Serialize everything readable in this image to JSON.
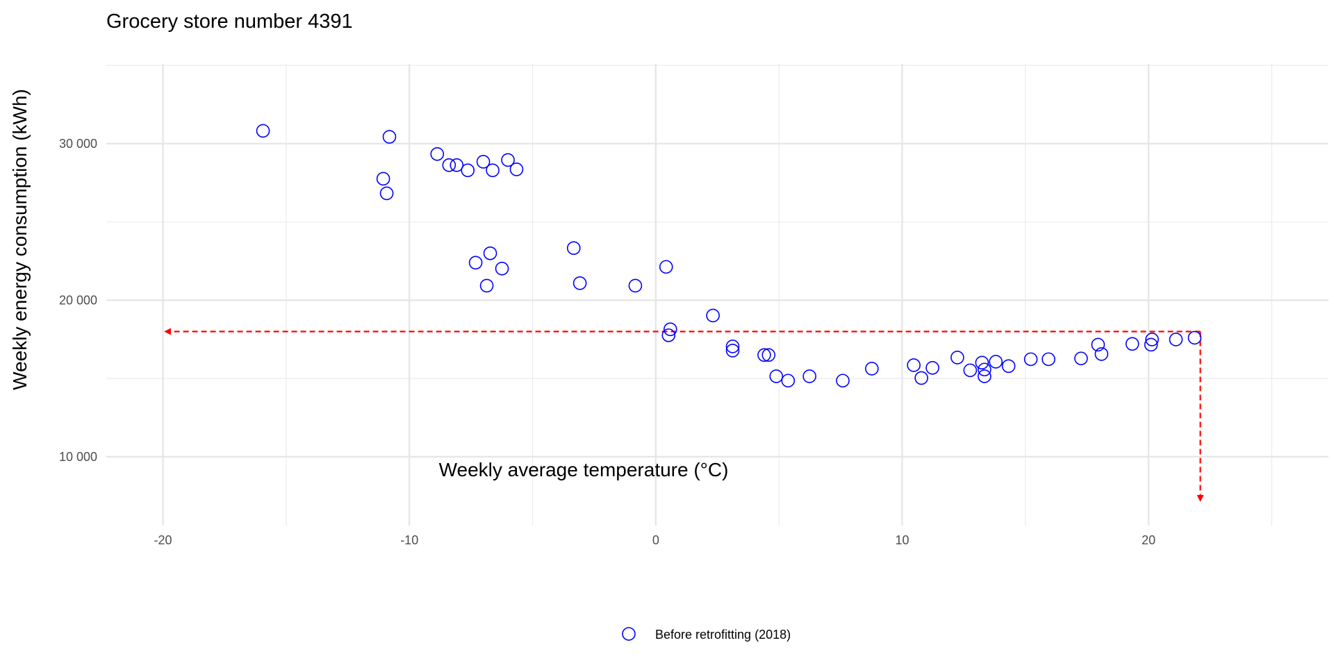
{
  "chart_data": {
    "type": "scatter",
    "title": "Grocery store number 4391",
    "xlabel": "Weekly average temperature (°C)",
    "ylabel": "Weekly energy consumption (kWh)",
    "xlim": [
      -22.3,
      27.3
    ],
    "ylim": [
      5600,
      35100
    ],
    "x_ticks": [
      -20,
      -10,
      0,
      10,
      20
    ],
    "x_tick_labels": [
      "-20",
      "-10",
      "0",
      "10",
      "20"
    ],
    "x_minor_ticks": [
      -15,
      -5,
      5,
      15,
      25
    ],
    "y_ticks": [
      10000,
      20000,
      30000
    ],
    "y_tick_labels": [
      "10 000",
      "20 000",
      "30 000"
    ],
    "y_minor_ticks": [
      15000,
      25000,
      35000
    ],
    "grid": true,
    "legend_position": "bottom",
    "series": [
      {
        "name": "Before retrofitting (2018)",
        "color": "#0000ff",
        "marker": "open-circle",
        "points": [
          [
            -15.94,
            30820
          ],
          [
            -10.81,
            30440
          ],
          [
            -11.06,
            27760
          ],
          [
            -10.92,
            26830
          ],
          [
            -8.87,
            29340
          ],
          [
            -8.39,
            28630
          ],
          [
            -8.08,
            28630
          ],
          [
            -7.63,
            28300
          ],
          [
            -7.0,
            28850
          ],
          [
            -6.62,
            28300
          ],
          [
            -6.0,
            28960
          ],
          [
            -5.65,
            28360
          ],
          [
            -7.31,
            22400
          ],
          [
            -6.72,
            23000
          ],
          [
            -6.24,
            22020
          ],
          [
            -6.86,
            20930
          ],
          [
            -3.33,
            23330
          ],
          [
            -3.08,
            21090
          ],
          [
            -0.83,
            20930
          ],
          [
            0.42,
            22130
          ],
          [
            0.59,
            18140
          ],
          [
            0.52,
            17760
          ],
          [
            2.32,
            19020
          ],
          [
            3.12,
            17050
          ],
          [
            3.12,
            16780
          ],
          [
            4.4,
            16500
          ],
          [
            4.58,
            16500
          ],
          [
            4.89,
            15140
          ],
          [
            5.37,
            14860
          ],
          [
            6.24,
            15140
          ],
          [
            7.59,
            14860
          ],
          [
            8.77,
            15630
          ],
          [
            10.47,
            15850
          ],
          [
            10.78,
            15030
          ],
          [
            11.23,
            15680
          ],
          [
            12.24,
            16340
          ],
          [
            12.76,
            15520
          ],
          [
            13.24,
            16010
          ],
          [
            13.34,
            15570
          ],
          [
            13.34,
            15140
          ],
          [
            13.8,
            16070
          ],
          [
            14.32,
            15790
          ],
          [
            15.22,
            16230
          ],
          [
            15.94,
            16230
          ],
          [
            17.26,
            16280
          ],
          [
            17.95,
            17160
          ],
          [
            18.09,
            16560
          ],
          [
            19.34,
            17210
          ],
          [
            20.14,
            17490
          ],
          [
            20.1,
            17160
          ],
          [
            21.11,
            17490
          ],
          [
            21.87,
            17600
          ]
        ]
      }
    ],
    "annotations": [
      {
        "type": "dashed-arrow",
        "color": "#ff0000",
        "from": [
          22.1,
          18000
        ],
        "to": [
          -19.9,
          18000
        ]
      },
      {
        "type": "dashed-arrow",
        "color": "#ff0000",
        "from": [
          22.1,
          18000
        ],
        "to": [
          22.1,
          7200
        ]
      }
    ]
  }
}
